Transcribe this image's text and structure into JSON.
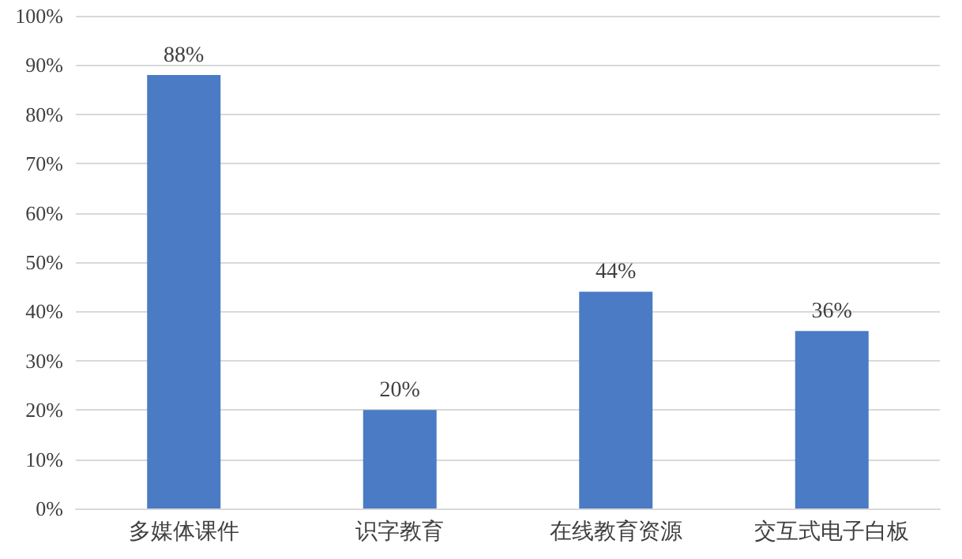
{
  "chart_data": {
    "type": "bar",
    "categories": [
      "多媒体课件",
      "识字教育",
      "在线教育资源",
      "交互式电子白板"
    ],
    "values": [
      88,
      20,
      44,
      36
    ],
    "value_labels": [
      "88%",
      "20%",
      "44%",
      "36%"
    ],
    "color": "#4a7bc4",
    "ylim": [
      0,
      100
    ],
    "yticks": [
      {
        "value": 0,
        "label": "0%"
      },
      {
        "value": 10,
        "label": "10%"
      },
      {
        "value": 20,
        "label": "20%"
      },
      {
        "value": 30,
        "label": "30%"
      },
      {
        "value": 40,
        "label": "40%"
      },
      {
        "value": 50,
        "label": "50%"
      },
      {
        "value": 60,
        "label": "60%"
      },
      {
        "value": 70,
        "label": "70%"
      },
      {
        "value": 80,
        "label": "80%"
      },
      {
        "value": 90,
        "label": "90%"
      },
      {
        "value": 100,
        "label": "100%"
      }
    ],
    "grid": "y"
  }
}
